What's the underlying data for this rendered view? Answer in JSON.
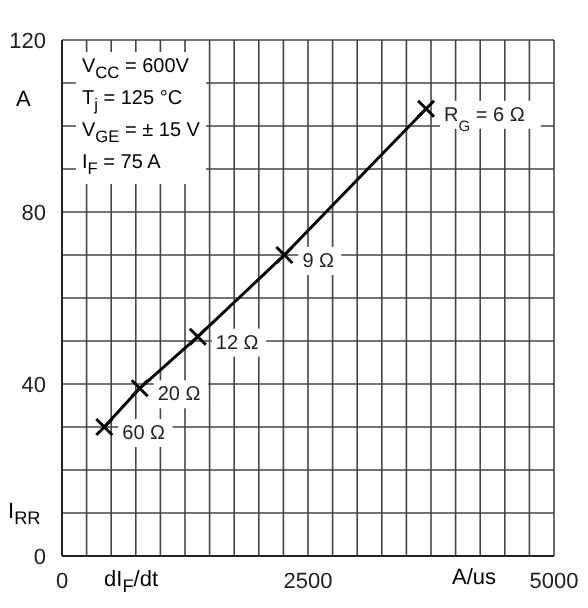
{
  "chart_data": {
    "type": "line",
    "xlabel": "dI$_{F}$/dt",
    "ylabel": "I$_{RR}$",
    "annotations": [
      "V$_{CC}$ = 600V",
      "T$_{j}$ = 125 °C",
      "V$_{GE}$ = ± 15 V",
      "I$_{F}$ = 75 A",
      "A",
      "A/us",
      {
        "text": "R$_{G}$= 6 Ω",
        "x": 3700,
        "y": 104
      },
      {
        "text": "9 Ω",
        "x": 2260,
        "y": 70
      },
      {
        "text": "12 Ω",
        "x": 1380,
        "y": 51
      },
      {
        "text": "20 Ω",
        "x": 790,
        "y": 39
      },
      {
        "text": "60 Ω",
        "x": 430,
        "y": 30
      }
    ],
    "series": [
      {
        "color": "#000000",
        "x": [
          430,
          790,
          1380,
          2260,
          3700
        ],
        "values": [
          30,
          39,
          51,
          70,
          104
        ]
      }
    ],
    "marker": "cross",
    "grid": true,
    "xlim": [
      0,
      5000
    ],
    "xticks": [
      0,
      {
        "value": 250,
        "label": null
      },
      {
        "value": 500,
        "label": null
      },
      {
        "value": 750,
        "label": null
      },
      {
        "value": 1000,
        "label": null
      },
      {
        "value": 1250,
        "label": null
      },
      {
        "value": 1500,
        "label": null
      },
      {
        "value": 1750,
        "label": null
      },
      {
        "value": 2000,
        "label": null
      },
      {
        "value": 2250,
        "label": null
      },
      2500,
      {
        "value": 2750,
        "label": null
      },
      {
        "value": 3000,
        "label": null
      },
      {
        "value": 3250,
        "label": null
      },
      {
        "value": 3500,
        "label": null
      },
      {
        "value": 3750,
        "label": null
      },
      {
        "value": 4000,
        "label": null
      },
      {
        "value": 4250,
        "label": null
      },
      {
        "value": 4500,
        "label": null
      },
      {
        "value": 4750,
        "label": null
      },
      5000
    ],
    "ylim": [
      0,
      120
    ],
    "yticks": [
      0,
      {
        "value": 10,
        "label": null
      },
      {
        "value": 20,
        "label": null
      },
      {
        "value": 30,
        "label": null
      },
      40,
      {
        "value": 50,
        "label": null
      },
      {
        "value": 60,
        "label": null
      },
      {
        "value": 70,
        "label": null
      },
      80,
      {
        "value": 90,
        "label": null
      },
      {
        "value": 100,
        "label": null
      },
      {
        "value": 110,
        "label": null
      },
      120
    ]
  }
}
